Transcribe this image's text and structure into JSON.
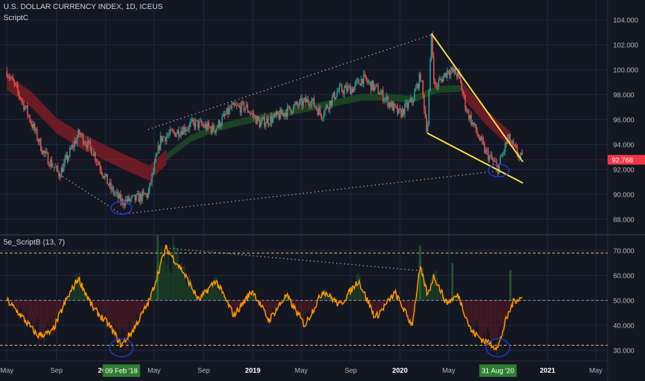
{
  "header": {
    "symbol_title": "U.S. DOLLAR CURRENCY INDEX, 1D, ICEUS",
    "overlay_indicator": "ScriptC",
    "oscillator_title": "5e_ScriptB (13, 7)"
  },
  "colors": {
    "background": "#131722",
    "grid": "#1e2a44",
    "candle_up": "#26a69a",
    "candle_down": "#ef5350",
    "band_bear": "#7a1c24",
    "band_bull": "#1d4a22",
    "trendline": "#ffeb3b",
    "dotted_line": "#c8c8c8",
    "circle": "#2436d8",
    "oscillator": "#ff9800",
    "level_line": "#f2c94c",
    "price_tag": "#f23645",
    "date_tag": "#2e7d32"
  },
  "chart_data": [
    {
      "type": "line",
      "subtype": "candlestick",
      "title": "U.S. DOLLAR CURRENCY INDEX, 1D, ICEUS",
      "timeframe": "1D",
      "x": [
        "2017-05-01",
        "2017-06-15",
        "2017-07-31",
        "2017-09-08",
        "2017-10-27",
        "2017-12-01",
        "2018-01-12",
        "2018-02-09",
        "2018-03-15",
        "2018-04-16",
        "2018-05-18",
        "2018-06-25",
        "2018-08-10",
        "2018-09-28",
        "2018-11-08",
        "2018-12-14",
        "2019-01-18",
        "2019-03-01",
        "2019-04-12",
        "2019-05-24",
        "2019-06-20",
        "2019-07-31",
        "2019-09-06",
        "2019-09-30",
        "2019-11-08",
        "2019-12-31",
        "2020-01-31",
        "2020-02-21",
        "2020-03-09",
        "2020-03-19",
        "2020-03-27",
        "2020-04-30",
        "2020-05-25",
        "2020-06-15",
        "2020-07-31",
        "2020-08-31",
        "2020-09-25",
        "2020-10-15",
        "2020-10-30"
      ],
      "close": [
        99.9,
        97.0,
        93.3,
        91.6,
        94.9,
        93.4,
        90.5,
        89.4,
        89.6,
        90.0,
        94.5,
        95.0,
        95.7,
        95.2,
        96.9,
        97.0,
        95.7,
        96.2,
        97.0,
        97.6,
        96.4,
        98.3,
        98.5,
        99.3,
        98.3,
        96.4,
        97.5,
        99.5,
        94.9,
        102.8,
        98.5,
        100.0,
        99.6,
        96.7,
        93.4,
        92.1,
        94.5,
        93.4,
        92.8
      ],
      "band": {
        "x": [
          "2017-05-01",
          "2017-07-01",
          "2017-09-01",
          "2017-11-01",
          "2018-01-01",
          "2018-03-01",
          "2018-04-20",
          "2018-06-01",
          "2018-08-01",
          "2018-10-01",
          "2018-12-01",
          "2019-02-01",
          "2019-04-01",
          "2019-06-01",
          "2019-08-01",
          "2019-10-01",
          "2019-12-01",
          "2020-02-01",
          "2020-04-01",
          "2020-06-01",
          "2020-08-01",
          "2020-10-01"
        ],
        "center": [
          99.0,
          97.6,
          95.5,
          94.3,
          93.3,
          92.4,
          91.7,
          93.0,
          94.5,
          95.3,
          95.8,
          96.2,
          96.6,
          97.0,
          97.4,
          97.8,
          97.8,
          97.6,
          98.4,
          98.5,
          96.2,
          94.4
        ],
        "bull": [
          false,
          false,
          false,
          false,
          false,
          false,
          false,
          true,
          true,
          true,
          true,
          true,
          true,
          true,
          true,
          true,
          true,
          true,
          true,
          false,
          false,
          false
        ]
      },
      "yticks": [
        "104.000",
        "102.000",
        "100.000",
        "98.000",
        "96.000",
        "94.000",
        "92.000",
        "90.000",
        "88.000"
      ],
      "ylim": [
        86.8,
        104.7
      ],
      "last_price_label": "92.768",
      "trendlines": [
        {
          "kind": "solid",
          "from": {
            "x": "2020-03-19",
            "y": 102.9
          },
          "to": {
            "x": "2020-11-01",
            "y": 92.6
          }
        },
        {
          "kind": "solid",
          "from": {
            "x": "2020-03-09",
            "y": 94.9
          },
          "to": {
            "x": "2020-11-01",
            "y": 90.9
          }
        },
        {
          "kind": "dotted",
          "from": {
            "x": "2018-04-16",
            "y": 95.2
          },
          "to": {
            "x": "2020-03-19",
            "y": 102.8
          }
        },
        {
          "kind": "dotted",
          "from": {
            "x": "2018-02-09",
            "y": 88.4
          },
          "to": {
            "x": "2020-09-08",
            "y": 91.9
          }
        },
        {
          "kind": "dotted",
          "from": {
            "x": "2017-09-08",
            "y": 91.6
          },
          "to": {
            "x": "2018-02-09",
            "y": 88.4
          }
        }
      ],
      "circles": [
        {
          "x": "2018-02-09",
          "y": 88.9
        },
        {
          "x": "2020-09-02",
          "y": 91.9
        }
      ]
    },
    {
      "type": "line",
      "title": "5e_ScriptB (13, 7)",
      "x": [
        "2017-05-01",
        "2017-06-10",
        "2017-07-15",
        "2017-08-20",
        "2017-09-25",
        "2017-10-25",
        "2017-11-30",
        "2018-01-10",
        "2018-02-09",
        "2018-03-10",
        "2018-04-20",
        "2018-05-30",
        "2018-07-10",
        "2018-08-20",
        "2018-10-01",
        "2018-11-15",
        "2018-12-31",
        "2019-02-10",
        "2019-03-25",
        "2019-05-10",
        "2019-06-25",
        "2019-08-05",
        "2019-09-20",
        "2019-11-01",
        "2019-12-20",
        "2020-01-31",
        "2020-02-20",
        "2020-03-10",
        "2020-03-25",
        "2020-04-25",
        "2020-05-25",
        "2020-06-25",
        "2020-07-25",
        "2020-08-31",
        "2020-09-20",
        "2020-10-10",
        "2020-10-30"
      ],
      "values": [
        50,
        43,
        36,
        37,
        50,
        59,
        47,
        40,
        32,
        38,
        50,
        71,
        62,
        50,
        58,
        44,
        54,
        42,
        52,
        40,
        54,
        48,
        58,
        43,
        53,
        40,
        63,
        52,
        60,
        49,
        52,
        38,
        34,
        31,
        42,
        50,
        51
      ],
      "histogram_bull": [
        [
          "2018-04-15",
          38
        ],
        [
          "2018-05-10",
          78
        ],
        [
          "2020-02-20",
          72
        ],
        [
          "2020-05-10",
          65
        ],
        [
          "2020-10-01",
          62
        ]
      ],
      "levels": [
        69,
        50,
        32
      ],
      "yticks": [
        "70.000",
        "60.000",
        "50.000",
        "40.000",
        "30.000"
      ],
      "ylim": [
        26,
        76
      ],
      "dotted_line": {
        "from": {
          "x": "2018-05-30",
          "y": 71
        },
        "to": {
          "x": "2020-02-15",
          "y": 62
        }
      },
      "circles": [
        {
          "x": "2018-02-09",
          "y": 31
        },
        {
          "x": "2020-08-31",
          "y": 31
        }
      ]
    }
  ],
  "time_axis": {
    "ticks": [
      {
        "x": "2017-05-01",
        "label": "May",
        "bold": false
      },
      {
        "x": "2017-09-01",
        "label": "Sep",
        "bold": false
      },
      {
        "x": "2018-01-01",
        "label": "2018",
        "bold": true
      },
      {
        "x": "2018-05-01",
        "label": "May",
        "bold": false
      },
      {
        "x": "2018-09-01",
        "label": "Sep",
        "bold": false
      },
      {
        "x": "2019-01-01",
        "label": "2019",
        "bold": true
      },
      {
        "x": "2019-05-01",
        "label": "May",
        "bold": false
      },
      {
        "x": "2019-09-01",
        "label": "Sep",
        "bold": false
      },
      {
        "x": "2020-01-01",
        "label": "2020",
        "bold": true
      },
      {
        "x": "2020-05-01",
        "label": "May",
        "bold": false
      },
      {
        "x": "2021-01-01",
        "label": "2021",
        "bold": true
      },
      {
        "x": "2021-05-01",
        "label": "May",
        "bold": false
      }
    ],
    "markers": [
      {
        "x": "2018-02-09",
        "label": "09 Feb '18"
      },
      {
        "x": "2020-08-31",
        "label": "31 Aug '20"
      }
    ]
  }
}
